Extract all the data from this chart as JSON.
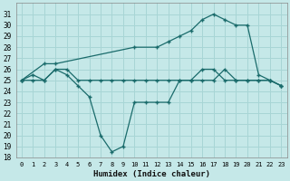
{
  "xlabel": "Humidex (Indice chaleur)",
  "bg_color": "#c5e8e8",
  "grid_color": "#a8d5d5",
  "line_color": "#1a6b6b",
  "xlim": [
    -0.5,
    23.5
  ],
  "ylim": [
    18,
    32
  ],
  "xticks": [
    0,
    1,
    2,
    3,
    4,
    5,
    6,
    7,
    8,
    9,
    10,
    11,
    12,
    13,
    14,
    15,
    16,
    17,
    18,
    19,
    20,
    21,
    22,
    23
  ],
  "yticks": [
    18,
    19,
    20,
    21,
    22,
    23,
    24,
    25,
    26,
    27,
    28,
    29,
    30,
    31
  ],
  "line1_x": [
    0,
    1,
    2,
    3,
    4,
    5,
    6,
    7,
    8,
    9,
    10,
    11,
    12,
    13,
    14,
    15,
    16,
    17,
    18,
    19,
    20,
    21,
    22,
    23
  ],
  "line1_y": [
    25,
    25,
    25,
    26,
    26,
    25,
    25,
    25,
    25,
    25,
    25,
    25,
    25,
    25,
    25,
    25,
    25,
    25,
    26,
    25,
    25,
    25,
    25,
    24.5
  ],
  "line2_x": [
    0,
    2,
    3,
    10,
    12,
    13,
    14,
    15,
    16,
    17,
    18,
    19,
    20,
    21,
    22,
    23
  ],
  "line2_y": [
    25,
    26.5,
    26.5,
    28,
    28,
    28.5,
    29,
    29.5,
    30.5,
    31,
    30.5,
    30,
    30,
    25.5,
    25,
    24.5
  ],
  "line3_x": [
    0,
    1,
    2,
    3,
    4,
    5,
    6,
    7,
    8,
    9,
    10,
    11,
    12,
    13,
    14,
    15,
    16,
    17,
    18,
    19,
    20,
    21,
    22,
    23
  ],
  "line3_y": [
    25,
    25.5,
    25,
    26,
    25.5,
    24.5,
    23.5,
    20,
    18.5,
    19,
    23,
    23,
    23,
    23,
    25,
    25,
    26,
    26,
    25,
    25,
    25,
    25,
    25,
    24.5
  ]
}
